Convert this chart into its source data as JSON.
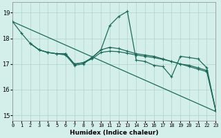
{
  "xlabel": "Humidex (Indice chaleur)",
  "bg_color": "#d4eeea",
  "grid_color": "#aed4ce",
  "line_color": "#1a6b5a",
  "xlim": [
    0,
    23
  ],
  "ylim": [
    14.8,
    19.4
  ],
  "yticks": [
    15,
    16,
    17,
    18,
    19
  ],
  "xtick_labels": [
    "0",
    "1",
    "2",
    "3",
    "4",
    "5",
    "6",
    "7",
    "8",
    "9",
    "10",
    "11",
    "12",
    "13",
    "14",
    "15",
    "16",
    "17",
    "18",
    "19",
    "20",
    "21",
    "22",
    "23"
  ],
  "series1_x": [
    0,
    1,
    2,
    3,
    4,
    5,
    6,
    7,
    8,
    9,
    10,
    11,
    12,
    13,
    14,
    15,
    16,
    17,
    18,
    19,
    20,
    21,
    22,
    23
  ],
  "series1_y": [
    18.65,
    18.2,
    17.8,
    17.55,
    17.45,
    17.4,
    17.35,
    16.95,
    17.0,
    17.25,
    17.55,
    18.5,
    18.85,
    19.05,
    17.15,
    17.1,
    16.95,
    16.9,
    16.5,
    17.3,
    17.25,
    17.2,
    16.85,
    15.2
  ],
  "series2_x": [
    2,
    3,
    4,
    5,
    6,
    7,
    8,
    9,
    10,
    11,
    12,
    13,
    14,
    15,
    16,
    17,
    18,
    19,
    20,
    21,
    22,
    23
  ],
  "series2_y": [
    17.8,
    17.55,
    17.45,
    17.4,
    17.4,
    17.0,
    17.05,
    17.25,
    17.55,
    17.65,
    17.6,
    17.5,
    17.4,
    17.35,
    17.3,
    17.2,
    17.1,
    17.0,
    16.95,
    16.85,
    16.75,
    15.2
  ],
  "series3_x": [
    2,
    3,
    4,
    5,
    6,
    7,
    8,
    9,
    10,
    11,
    12,
    13,
    14,
    15,
    16,
    17,
    18,
    19,
    20,
    21,
    22,
    23
  ],
  "series3_y": [
    17.8,
    17.55,
    17.45,
    17.4,
    17.4,
    17.0,
    17.05,
    17.2,
    17.45,
    17.5,
    17.48,
    17.42,
    17.35,
    17.3,
    17.25,
    17.18,
    17.1,
    17.0,
    16.9,
    16.8,
    16.7,
    15.2
  ],
  "trend_x": [
    0,
    23
  ],
  "trend_y": [
    18.65,
    15.15
  ]
}
